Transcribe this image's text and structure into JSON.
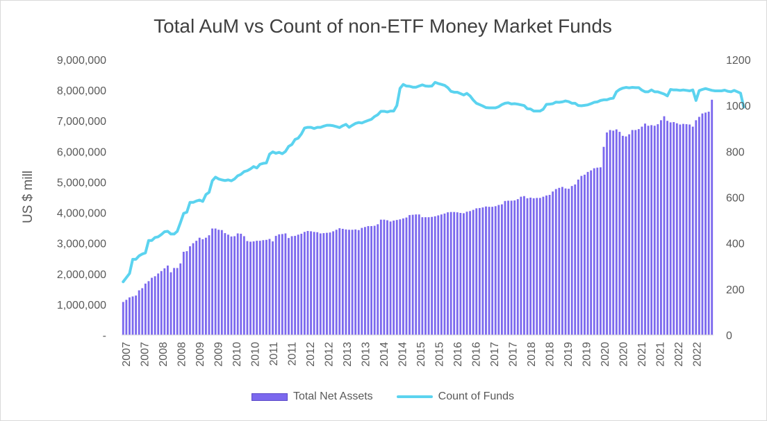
{
  "chart_data": {
    "type": "bar",
    "title": "Total AuM vs Count of non-ETF Money Market Funds",
    "ylabel": "US $ mill",
    "ylim": [
      0,
      9000000
    ],
    "y2lim": [
      0,
      1200
    ],
    "yticks": [
      "-",
      "1,000,000",
      "2,000,000",
      "3,000,000",
      "4,000,000",
      "5,000,000",
      "6,000,000",
      "7,000,000",
      "8,000,000",
      "9,000,000"
    ],
    "y2ticks": [
      "0",
      "200",
      "400",
      "600",
      "800",
      "1000",
      "1200"
    ],
    "xticks": [
      "2007",
      "2007",
      "2008",
      "2008",
      "2009",
      "2009",
      "2010",
      "2010",
      "2011",
      "2011",
      "2012",
      "2012",
      "2013",
      "2013",
      "2014",
      "2014",
      "2015",
      "2015",
      "2016",
      "2016",
      "2017",
      "2017",
      "2018",
      "2018",
      "2019",
      "2019",
      "2020",
      "2020",
      "2021",
      "2021",
      "2022",
      "2022"
    ],
    "legend_position": "bottom",
    "colors": {
      "bars": "#7b68ee",
      "bar_edge": "#5a48c8",
      "line": "#5bd3ef"
    },
    "series": [
      {
        "name": "Total Net Assets",
        "kind": "bar",
        "axis": "left",
        "values": [
          1080000,
          1150000,
          1230000,
          1260000,
          1290000,
          1460000,
          1530000,
          1680000,
          1760000,
          1870000,
          1920000,
          2010000,
          2090000,
          2180000,
          2270000,
          2050000,
          2190000,
          2190000,
          2340000,
          2720000,
          2740000,
          2900000,
          3000000,
          3080000,
          3180000,
          3130000,
          3180000,
          3260000,
          3480000,
          3480000,
          3440000,
          3430000,
          3330000,
          3280000,
          3220000,
          3230000,
          3320000,
          3310000,
          3230000,
          3070000,
          3050000,
          3060000,
          3080000,
          3080000,
          3100000,
          3110000,
          3140000,
          3060000,
          3240000,
          3290000,
          3300000,
          3320000,
          3170000,
          3230000,
          3240000,
          3280000,
          3310000,
          3370000,
          3400000,
          3390000,
          3370000,
          3360000,
          3320000,
          3330000,
          3340000,
          3350000,
          3390000,
          3440000,
          3490000,
          3470000,
          3450000,
          3440000,
          3440000,
          3450000,
          3430000,
          3500000,
          3530000,
          3560000,
          3560000,
          3570000,
          3620000,
          3770000,
          3770000,
          3750000,
          3710000,
          3740000,
          3760000,
          3780000,
          3810000,
          3840000,
          3920000,
          3930000,
          3940000,
          3940000,
          3850000,
          3850000,
          3850000,
          3860000,
          3880000,
          3910000,
          3940000,
          3970000,
          4010000,
          4020000,
          4020000,
          4010000,
          3990000,
          3980000,
          4030000,
          4050000,
          4090000,
          4140000,
          4150000,
          4170000,
          4200000,
          4190000,
          4190000,
          4210000,
          4250000,
          4270000,
          4380000,
          4390000,
          4390000,
          4400000,
          4440000,
          4520000,
          4540000,
          4470000,
          4490000,
          4470000,
          4480000,
          4480000,
          4520000,
          4560000,
          4580000,
          4690000,
          4770000,
          4810000,
          4840000,
          4790000,
          4780000,
          4870000,
          4920000,
          5080000,
          5200000,
          5240000,
          5330000,
          5380000,
          5450000,
          5470000,
          5480000,
          6150000,
          6620000,
          6700000,
          6680000,
          6720000,
          6640000,
          6510000,
          6490000,
          6560000,
          6700000,
          6700000,
          6730000,
          6810000,
          6910000,
          6840000,
          6860000,
          6840000,
          6890000,
          7020000,
          7150000,
          7000000,
          6950000,
          6960000,
          6920000,
          6880000,
          6900000,
          6890000,
          6880000,
          6810000,
          7020000,
          7130000,
          7240000,
          7270000,
          7300000,
          7690000
        ]
      },
      {
        "name": "Count of Funds",
        "kind": "line",
        "axis": "right",
        "values": [
          232,
          250,
          268,
          330,
          330,
          345,
          353,
          358,
          412,
          412,
          425,
          428,
          438,
          450,
          452,
          440,
          440,
          452,
          490,
          530,
          535,
          578,
          578,
          584,
          588,
          582,
          612,
          622,
          672,
          688,
          680,
          676,
          673,
          676,
          672,
          680,
          694,
          700,
          712,
          716,
          724,
          734,
          728,
          744,
          748,
          750,
          788,
          798,
          792,
          796,
          790,
          800,
          822,
          830,
          852,
          858,
          876,
          902,
          905,
          905,
          900,
          905,
          905,
          910,
          914,
          914,
          912,
          908,
          904,
          912,
          918,
          905,
          914,
          922,
          926,
          924,
          930,
          935,
          940,
          952,
          960,
          975,
          975,
          972,
          976,
          976,
          1000,
          1075,
          1092,
          1085,
          1084,
          1080,
          1080,
          1085,
          1090,
          1085,
          1084,
          1085,
          1101,
          1096,
          1092,
          1088,
          1078,
          1062,
          1058,
          1058,
          1052,
          1046,
          1053,
          1042,
          1024,
          1010,
          1004,
          998,
          991,
          990,
          990,
          990,
          995,
          1004,
          1010,
          1012,
          1007,
          1008,
          1006,
          1003,
          1000,
          986,
          985,
          976,
          976,
          976,
          984,
          1005,
          1006,
          1008,
          1015,
          1014,
          1016,
          1020,
          1017,
          1010,
          1010,
          1000,
          999,
          1001,
          1003,
          1008,
          1014,
          1016,
          1022,
          1025,
          1025,
          1030,
          1032,
          1060,
          1070,
          1076,
          1079,
          1077,
          1079,
          1078,
          1078,
          1067,
          1060,
          1060,
          1068,
          1060,
          1060,
          1055,
          1050,
          1042,
          1070,
          1068,
          1068,
          1066,
          1068,
          1066,
          1064,
          1068,
          1022,
          1065,
          1070,
          1074,
          1070,
          1066,
          1064,
          1064,
          1064,
          1067,
          1062,
          1060,
          1066,
          1060,
          1054,
          993
        ]
      }
    ]
  }
}
